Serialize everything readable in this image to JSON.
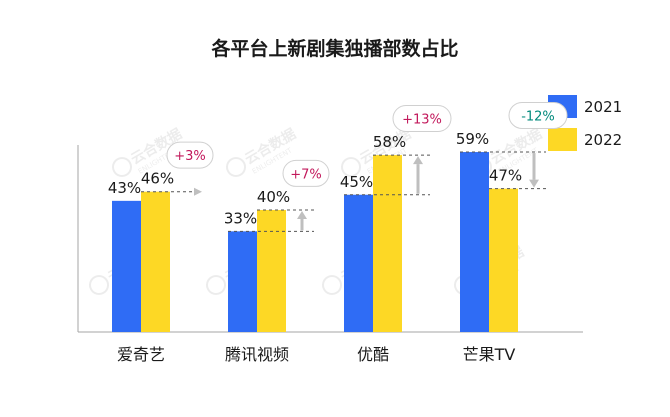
{
  "chart_data": {
    "type": "bar",
    "title": "各平台上新剧集独播部数占比",
    "xlabel": "",
    "ylabel": "",
    "ylim": [
      0,
      100
    ],
    "categories": [
      "爱奇艺",
      "腾讯视频",
      "优酷",
      "芒果TV"
    ],
    "series": [
      {
        "name": "2021",
        "values": [
          43,
          33,
          45,
          59
        ],
        "labels": [
          "43%",
          "33%",
          "45%",
          "59%"
        ]
      },
      {
        "name": "2022",
        "values": [
          46,
          40,
          58,
          47
        ],
        "labels": [
          "46%",
          "40%",
          "58%",
          "47%"
        ]
      }
    ],
    "annotations": [
      "+3%",
      "+7%",
      "+13%",
      "-12%"
    ],
    "legend_position": "top-right",
    "grid": false
  },
  "colors": {
    "series_2021": "#2f6cf5",
    "series_2022": "#fdd825",
    "badge_positive": "#c2185b",
    "badge_negative": "#00897b",
    "axis": "#a6a6a6",
    "arrow": "#bfbfbf"
  },
  "watermark_text": [
    "云合数据",
    "ENLIGHTENT"
  ]
}
